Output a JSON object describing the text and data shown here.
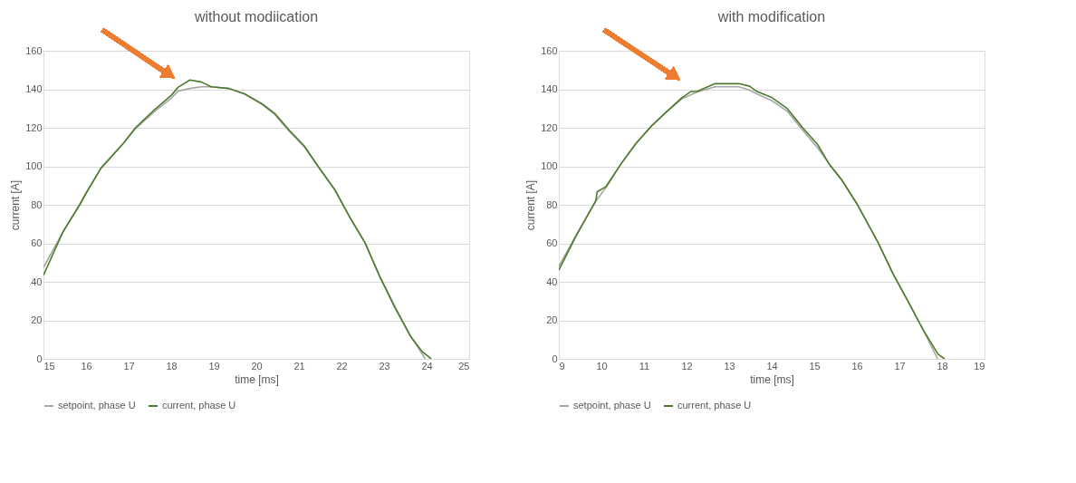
{
  "chart_data": [
    {
      "type": "line",
      "title": "without modiication",
      "xlabel": "time [ms]",
      "ylabel": "current [A]",
      "xlim": [
        15,
        25
      ],
      "xticks": [
        15,
        16,
        17,
        18,
        19,
        20,
        21,
        22,
        23,
        24,
        25
      ],
      "ylim": [
        0,
        160
      ],
      "yticks": [
        0,
        20,
        40,
        60,
        80,
        100,
        120,
        140,
        160
      ],
      "grid": "y",
      "legend": "bottom",
      "series": [
        {
          "name": "setpoint, phase U",
          "color": "#a6a6a6",
          "x": [
            15.0,
            15.46,
            15.85,
            16.0,
            16.35,
            16.88,
            17.16,
            17.59,
            18.01,
            18.16,
            18.44,
            18.72,
            18.94,
            19.36,
            19.72,
            20.14,
            20.43,
            20.78,
            21.13,
            21.45,
            21.84,
            22.2,
            22.55,
            22.9,
            23.26,
            23.62,
            23.97
          ],
          "values": [
            47.4,
            66,
            80,
            86,
            99,
            112,
            119.5,
            128,
            135.5,
            139,
            140.4,
            141.3,
            141.3,
            140.4,
            137.5,
            132,
            127,
            118,
            110,
            100,
            88,
            73.5,
            60.5,
            43,
            27,
            12,
            0
          ]
        },
        {
          "name": "current, phase U",
          "color": "#4e7a2e",
          "x": [
            15.0,
            15.46,
            15.85,
            16.0,
            16.35,
            16.88,
            17.16,
            17.59,
            18.01,
            18.16,
            18.44,
            18.72,
            18.94,
            19.36,
            19.72,
            20.14,
            20.43,
            20.78,
            21.13,
            21.45,
            21.84,
            22.2,
            22.55,
            22.9,
            23.26,
            23.62,
            23.9,
            24.11
          ],
          "values": [
            43.4,
            66,
            80,
            86,
            99,
            112,
            120,
            129,
            137,
            141,
            144.8,
            143.7,
            141.3,
            140.4,
            137.7,
            132.4,
            127.5,
            118.6,
            110.5,
            100,
            87.9,
            73.3,
            60.4,
            42.6,
            26.4,
            11.8,
            3.7,
            0
          ]
        }
      ]
    },
    {
      "type": "line",
      "title": "with modification",
      "xlabel": "time [ms]",
      "ylabel": "current [A]",
      "xlim": [
        9,
        19
      ],
      "xticks": [
        9,
        10,
        11,
        12,
        13,
        14,
        15,
        16,
        17,
        18,
        19
      ],
      "ylim": [
        0,
        160
      ],
      "yticks": [
        0,
        20,
        40,
        60,
        80,
        100,
        120,
        140,
        160
      ],
      "grid": "y",
      "legend": "bottom",
      "series": [
        {
          "name": "setpoint, phase U",
          "color": "#a6a6a6",
          "x": [
            9.0,
            9.4,
            9.87,
            10.11,
            10.47,
            10.82,
            11.18,
            11.53,
            11.89,
            12.24,
            12.67,
            13.23,
            13.48,
            13.66,
            14.01,
            14.37,
            14.72,
            15.08,
            15.36,
            15.65,
            16.0,
            16.5,
            16.85,
            17.21,
            17.56,
            17.9
          ],
          "values": [
            48,
            64,
            82,
            89,
            101.5,
            112,
            121,
            128.3,
            135,
            138.5,
            141.3,
            141.3,
            139.5,
            137.5,
            134,
            128.5,
            119,
            109.5,
            101,
            93,
            80.6,
            60.4,
            44.2,
            29.6,
            15,
            0
          ]
        },
        {
          "name": "current, phase U",
          "color": "#4e7a2e",
          "x": [
            9.0,
            9.4,
            9.87,
            9.9,
            10.11,
            10.47,
            10.82,
            11.18,
            11.53,
            11.89,
            12.1,
            12.24,
            12.67,
            13.23,
            13.48,
            13.66,
            14.01,
            14.37,
            14.72,
            15.08,
            15.36,
            15.65,
            16.0,
            16.5,
            16.85,
            17.21,
            17.56,
            17.91,
            18.06
          ],
          "values": [
            46.1,
            63.6,
            82.2,
            86.7,
            89.5,
            101.6,
            112.1,
            121,
            128.3,
            135.6,
            138.8,
            138.8,
            142.9,
            142.9,
            141.6,
            138.8,
            135.6,
            129.9,
            120.2,
            111.3,
            100.8,
            92.7,
            80.6,
            60.4,
            44.2,
            29.6,
            15,
            2.4,
            0
          ]
        }
      ]
    }
  ]
}
